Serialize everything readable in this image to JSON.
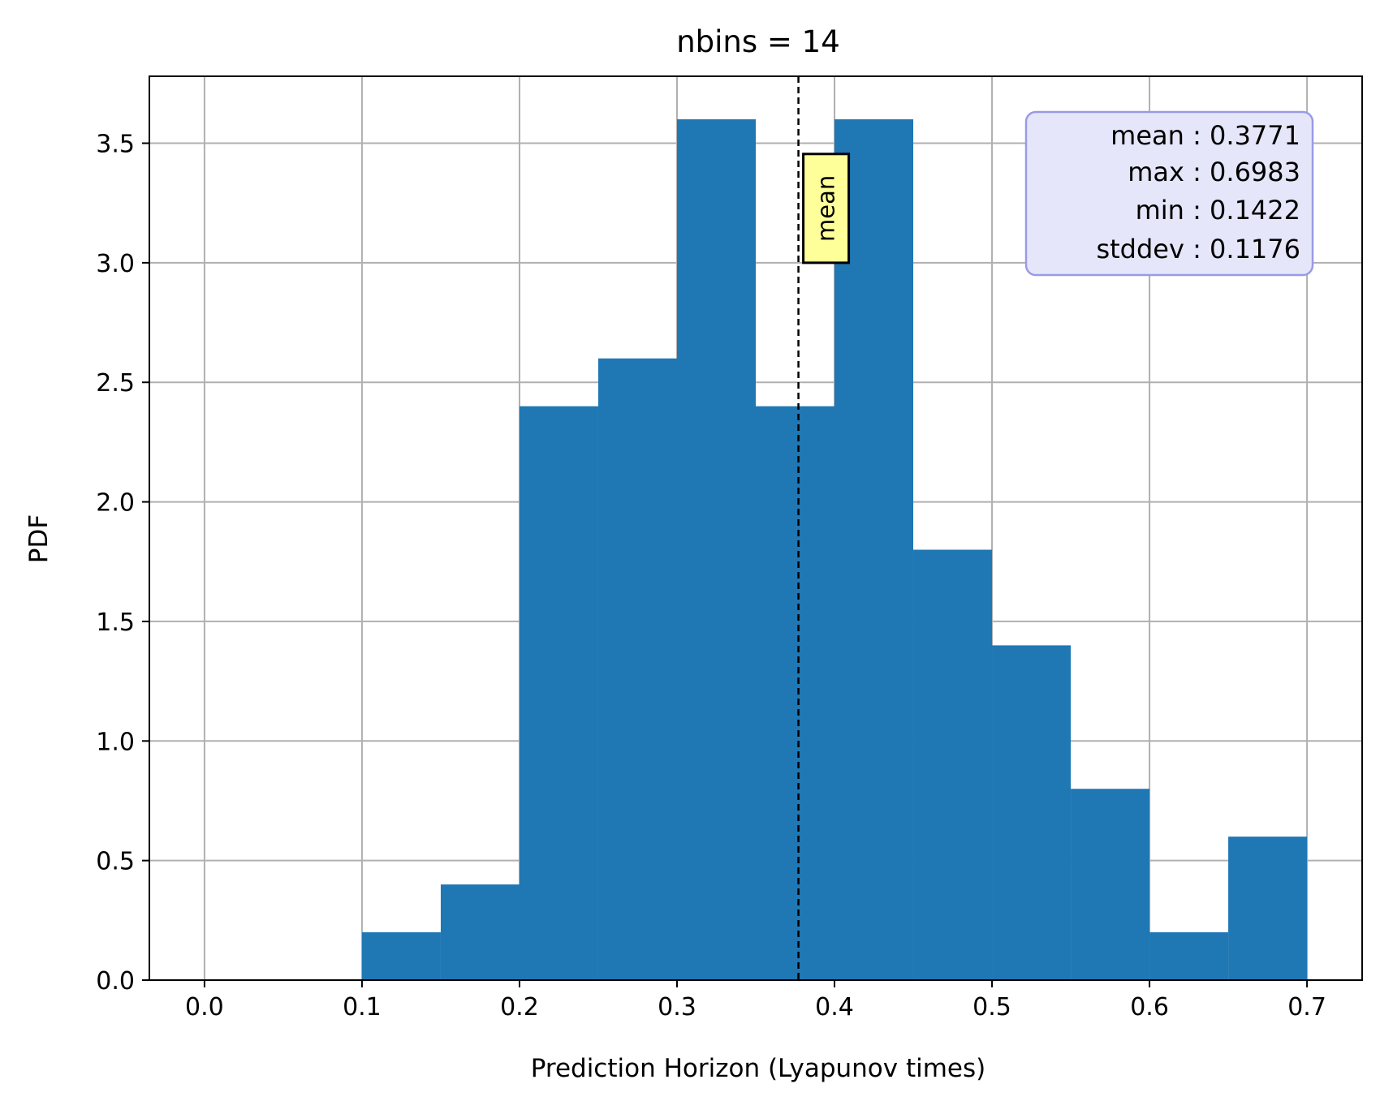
{
  "chart_data": {
    "type": "bar",
    "title": "nbins = 14",
    "xlabel": "Prediction Horizon (Lyapunov times)",
    "ylabel": "PDF",
    "xlim": [
      -0.035,
      0.735
    ],
    "ylim": [
      0,
      3.78
    ],
    "xticks": [
      "0.0",
      "0.1",
      "0.2",
      "0.3",
      "0.4",
      "0.5",
      "0.6",
      "0.7"
    ],
    "xtick_values": [
      0.0,
      0.1,
      0.2,
      0.3,
      0.4,
      0.5,
      0.6,
      0.7
    ],
    "yticks": [
      "0.0",
      "0.5",
      "1.0",
      "1.5",
      "2.0",
      "2.5",
      "3.0",
      "3.5"
    ],
    "ytick_values": [
      0.0,
      0.5,
      1.0,
      1.5,
      2.0,
      2.5,
      3.0,
      3.5
    ],
    "grid": true,
    "bin_edges": [
      0.0,
      0.05,
      0.1,
      0.15,
      0.2,
      0.25,
      0.3,
      0.35,
      0.4,
      0.45,
      0.5,
      0.55,
      0.6,
      0.65,
      0.7
    ],
    "values": [
      0.0,
      0.0,
      0.2,
      0.4,
      2.4,
      2.6,
      3.6,
      2.4,
      3.6,
      1.8,
      1.4,
      0.8,
      0.2,
      0.6
    ],
    "bar_color": "#1f77b4",
    "mean_line": {
      "x": 0.3771,
      "label": "mean",
      "style": "dashed"
    },
    "stats_box": {
      "lines": [
        "mean : 0.3771",
        "max : 0.6983",
        "min : 0.1422",
        "stddev : 0.1176"
      ],
      "placement": "top-right"
    }
  }
}
